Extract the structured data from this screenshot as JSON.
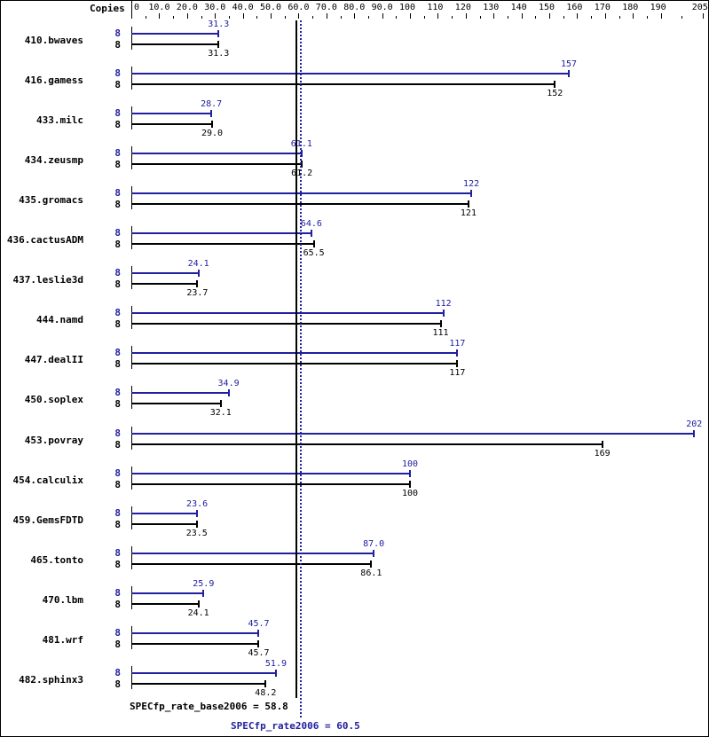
{
  "header": {
    "copies_label": "Copies",
    "ticks": [
      "0",
      "10.0",
      "20.0",
      "30.0",
      "40.0",
      "50.0",
      "60.0",
      "70.0",
      "80.0",
      "90.0",
      "100",
      "110",
      "120",
      "130",
      "140",
      "150",
      "160",
      "170",
      "180",
      "190",
      "205"
    ]
  },
  "colors": {
    "peak": "#2020a0",
    "base": "#000000"
  },
  "summary": {
    "base_label": "SPECfp_rate_base2006 = 58.8",
    "peak_label": "SPECfp_rate2006 = 60.5"
  },
  "chart_data": {
    "type": "bar",
    "title": "",
    "xlabel": "",
    "ylabel": "Copies",
    "xlim": [
      0,
      205
    ],
    "x_ticks": [
      0,
      10,
      20,
      30,
      40,
      50,
      60,
      70,
      80,
      90,
      100,
      110,
      120,
      130,
      140,
      150,
      160,
      170,
      180,
      190,
      205
    ],
    "categories": [
      "410.bwaves",
      "416.gamess",
      "433.milc",
      "434.zeusmp",
      "435.gromacs",
      "436.cactusADM",
      "437.leslie3d",
      "444.namd",
      "447.dealII",
      "450.soplex",
      "453.povray",
      "454.calculix",
      "459.GemsFDTD",
      "465.tonto",
      "470.lbm",
      "481.wrf",
      "482.sphinx3"
    ],
    "series": [
      {
        "name": "SPECfp_rate2006 (peak)",
        "color": "#2020a0",
        "copies": [
          8,
          8,
          8,
          8,
          8,
          8,
          8,
          8,
          8,
          8,
          8,
          8,
          8,
          8,
          8,
          8,
          8
        ],
        "values": [
          31.3,
          157,
          28.7,
          61.1,
          122,
          64.6,
          24.1,
          112,
          117,
          34.9,
          202,
          100,
          23.6,
          87.0,
          25.9,
          45.7,
          51.9
        ],
        "labels": [
          "31.3",
          "157",
          "28.7",
          "61.1",
          "122",
          "64.6",
          "24.1",
          "112",
          "117",
          "34.9",
          "202",
          "100",
          "23.6",
          "87.0",
          "25.9",
          "45.7",
          "51.9"
        ]
      },
      {
        "name": "SPECfp_rate_base2006 (base)",
        "color": "#000000",
        "copies": [
          8,
          8,
          8,
          8,
          8,
          8,
          8,
          8,
          8,
          8,
          8,
          8,
          8,
          8,
          8,
          8,
          8
        ],
        "values": [
          31.3,
          152,
          29.0,
          61.2,
          121,
          65.5,
          23.7,
          111,
          117,
          32.1,
          169,
          100,
          23.5,
          86.1,
          24.1,
          45.7,
          48.2
        ],
        "labels": [
          "31.3",
          "152",
          "29.0",
          "61.2",
          "121",
          "65.5",
          "23.7",
          "111",
          "117",
          "32.1",
          "169",
          "100",
          "23.5",
          "86.1",
          "24.1",
          "45.7",
          "48.2"
        ]
      }
    ],
    "reference_lines": [
      {
        "name": "SPECfp_rate_base2006",
        "value": 58.8,
        "style": "solid",
        "color": "#000000"
      },
      {
        "name": "SPECfp_rate2006",
        "value": 60.5,
        "style": "dotted",
        "color": "#2020a0"
      }
    ],
    "legend": "none"
  }
}
